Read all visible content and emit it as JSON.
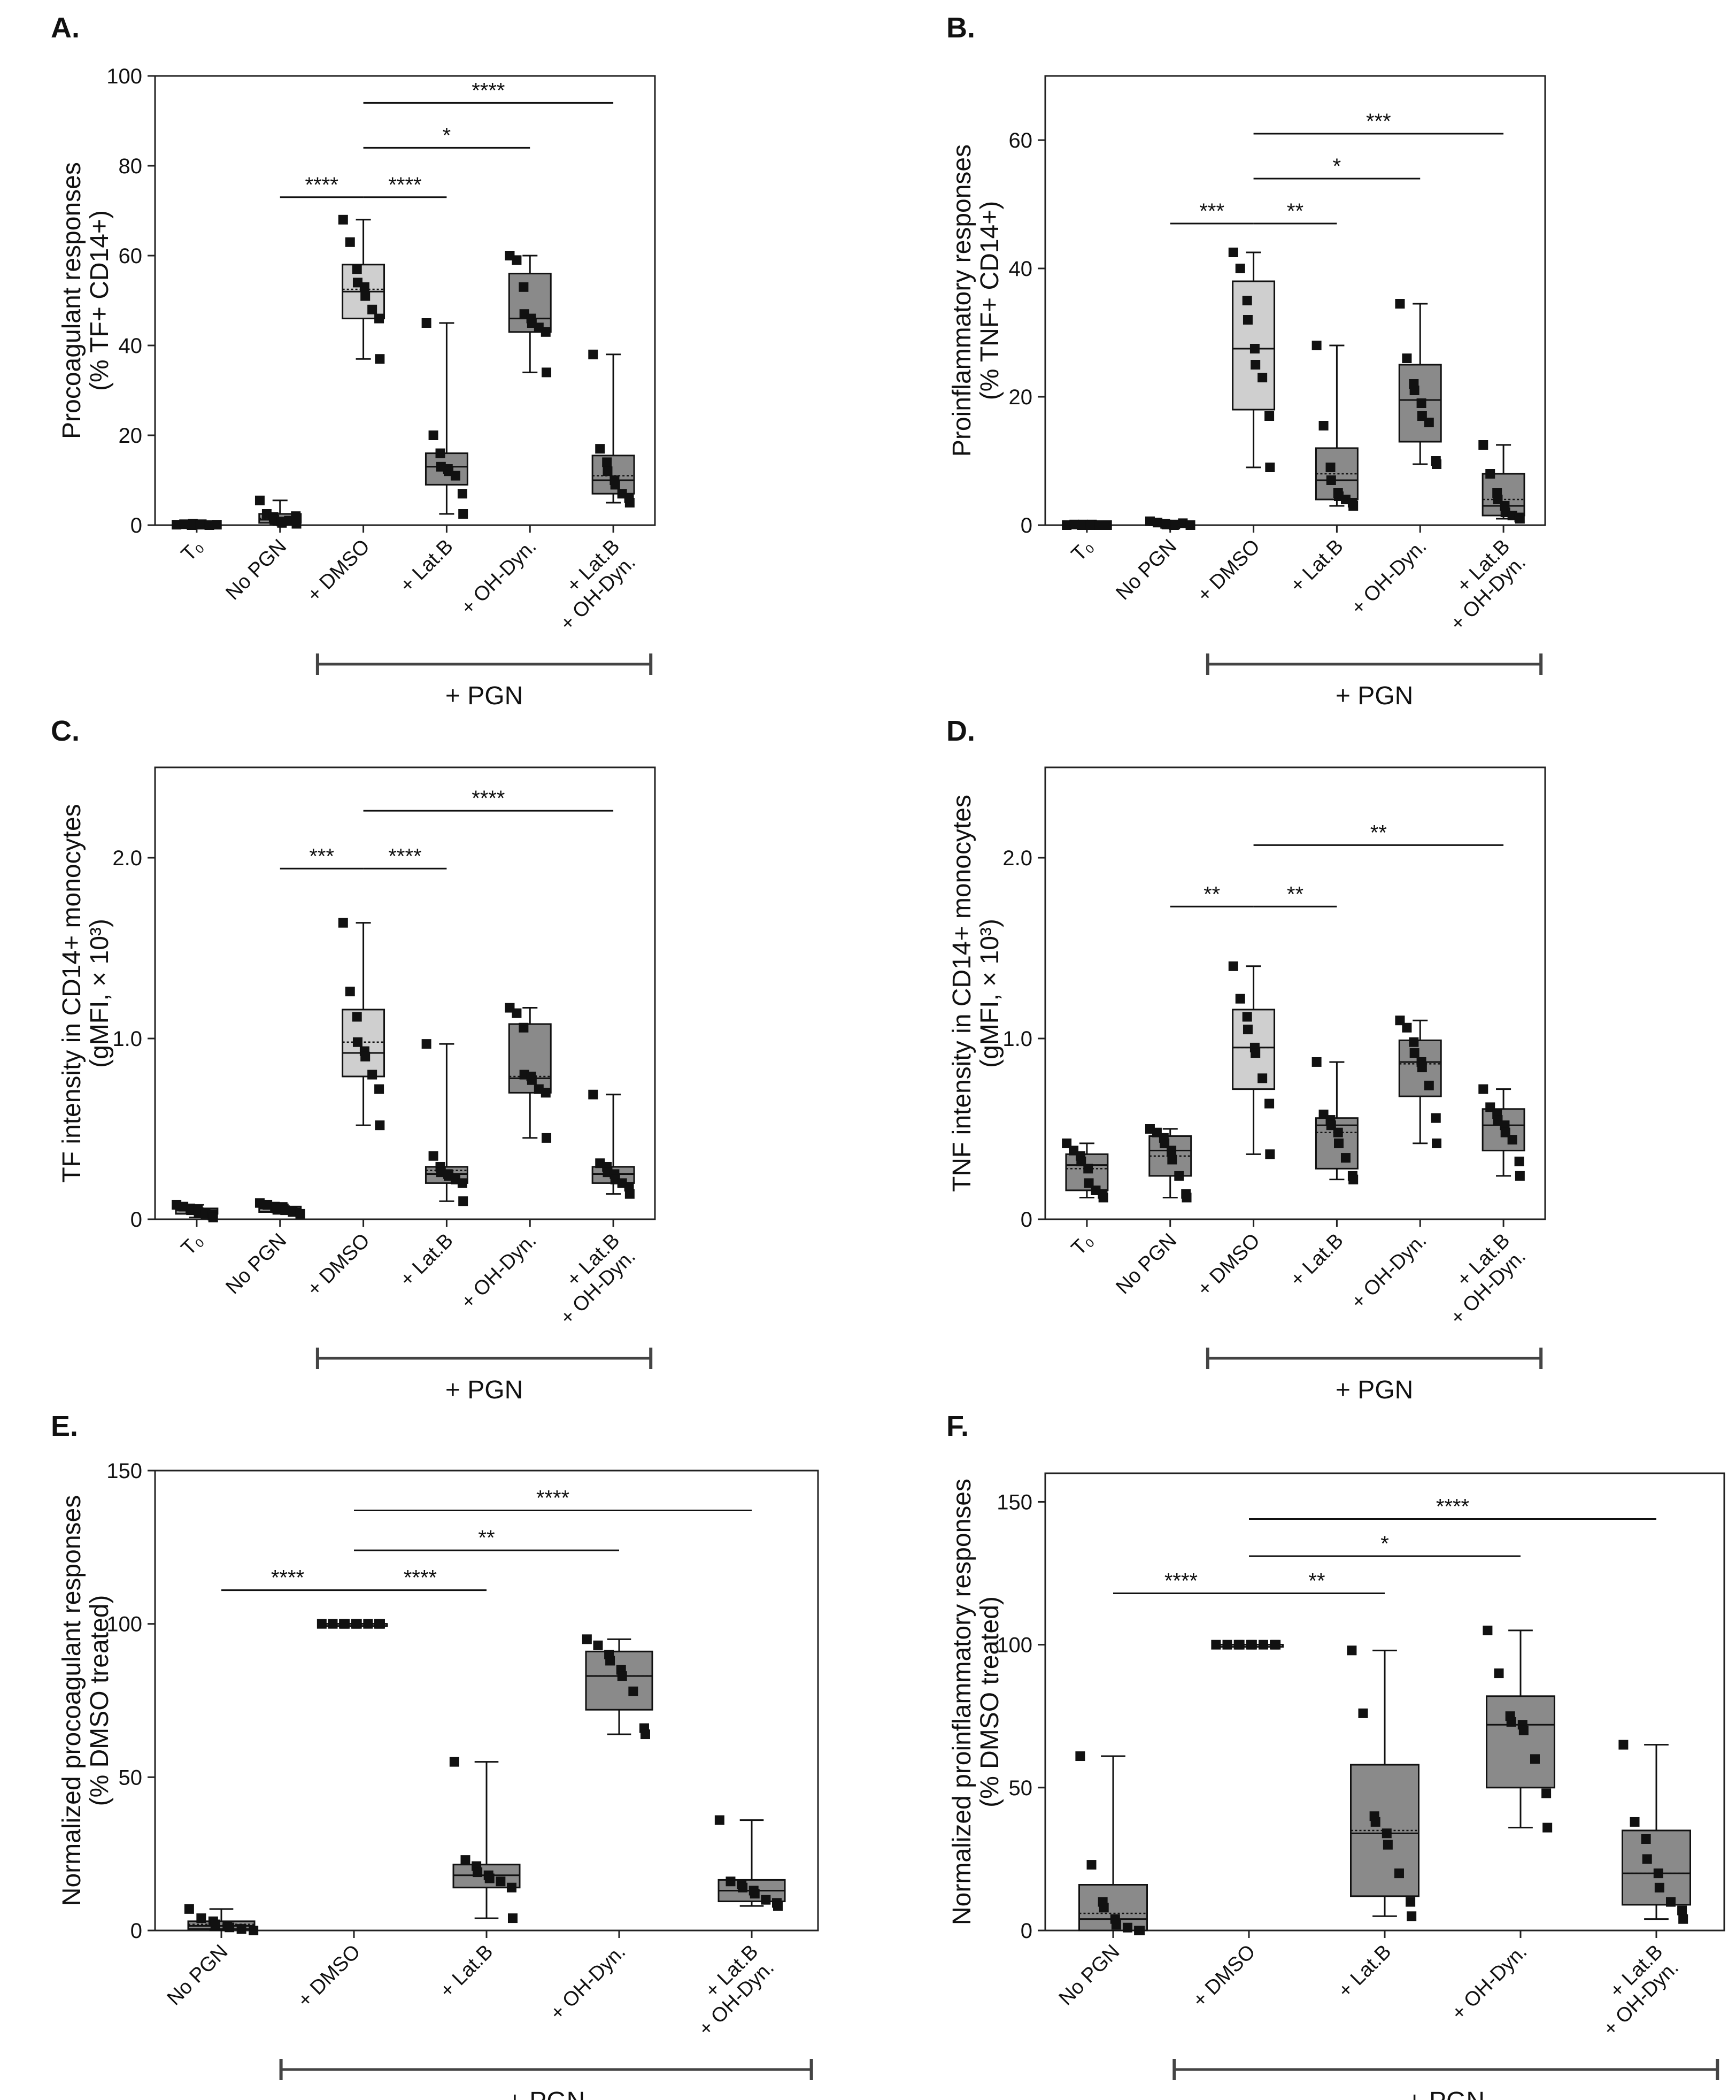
{
  "chart_data": [
    {
      "type": "box",
      "panel": "A.",
      "ylabel": [
        "Procoagulant responses",
        "(% TF+ CD14+)"
      ],
      "ylim": [
        0,
        100
      ],
      "yticks": [
        0,
        20,
        40,
        60,
        80,
        100
      ],
      "ytick_labels": [
        "0",
        "20",
        "40",
        "60",
        "80",
        "100"
      ],
      "categories": [
        [
          "T₀"
        ],
        [
          "No PGN"
        ],
        [
          "+ DMSO"
        ],
        [
          "+ Lat.B"
        ],
        [
          "+ OH-Dyn."
        ],
        [
          "+ Lat.B",
          "+ OH-Dyn."
        ]
      ],
      "group_label": "+ PGN",
      "group_span": [
        2,
        5
      ],
      "boxes": [
        {
          "min": 0,
          "q1": 0,
          "median": 0,
          "q3": 0.3,
          "max": 0.6,
          "mean": 0.1,
          "fill": "#8a8a8a",
          "points": [
            0.1,
            0.2,
            0.0,
            0.3,
            0.1,
            0.2,
            0.0,
            0.1
          ]
        },
        {
          "min": 0,
          "q1": 0.5,
          "median": 1.2,
          "q3": 2.5,
          "max": 5.5,
          "mean": 1.5,
          "fill": "#8a8a8a",
          "points": [
            5.5,
            2.5,
            1.8,
            1.2,
            0.8,
            0.5,
            1.0,
            2.0,
            0.3
          ]
        },
        {
          "min": 37,
          "q1": 46,
          "median": 52,
          "q3": 58,
          "max": 68,
          "mean": 52.5,
          "fill": "#cfcfcf",
          "points": [
            68,
            63,
            57,
            54,
            53,
            51,
            48,
            46,
            37
          ]
        },
        {
          "min": 2.5,
          "q1": 9,
          "median": 13,
          "q3": 16,
          "max": 45,
          "mean": 13,
          "fill": "#8a8a8a",
          "points": [
            45,
            20,
            16,
            13,
            12.5,
            12,
            11,
            7,
            2.5
          ]
        },
        {
          "min": 34,
          "q1": 43,
          "median": 46,
          "q3": 56,
          "max": 60,
          "mean": 46,
          "fill": "#8a8a8a",
          "points": [
            60,
            59,
            53,
            47,
            46,
            45,
            44,
            43,
            34
          ]
        },
        {
          "min": 5,
          "q1": 7,
          "median": 10,
          "q3": 15.5,
          "max": 38,
          "mean": 11,
          "fill": "#8a8a8a",
          "points": [
            38,
            17,
            14,
            12,
            10,
            9,
            7,
            6,
            5
          ]
        }
      ],
      "significance": [
        {
          "from": 1,
          "to": 2,
          "y": 73,
          "label": "****"
        },
        {
          "from": 2,
          "to": 3,
          "y": 73,
          "label": "****"
        },
        {
          "from": 2,
          "to": 4,
          "y": 84,
          "label": "*"
        },
        {
          "from": 2,
          "to": 5,
          "y": 94,
          "label": "****"
        }
      ]
    },
    {
      "type": "box",
      "panel": "B.",
      "ylabel": [
        "Proinflammatory responses",
        "(% TNF+ CD14+)"
      ],
      "ylim": [
        0,
        70
      ],
      "yticks": [
        0,
        20,
        40,
        60
      ],
      "ytick_labels": [
        "0",
        "20",
        "40",
        "60"
      ],
      "categories": [
        [
          "T₀"
        ],
        [
          "No PGN"
        ],
        [
          "+ DMSO"
        ],
        [
          "+ Lat.B"
        ],
        [
          "+ OH-Dyn."
        ],
        [
          "+ Lat.B",
          "+ OH-Dyn."
        ]
      ],
      "group_label": "+ PGN",
      "group_span": [
        2,
        5
      ],
      "boxes": [
        {
          "min": 0,
          "q1": 0,
          "median": 0,
          "q3": 0.1,
          "max": 0.2,
          "mean": 0,
          "fill": "#8a8a8a",
          "points": [
            0,
            0.1,
            0,
            0.1,
            0,
            0.1,
            0,
            0
          ]
        },
        {
          "min": 0,
          "q1": 0,
          "median": 0.1,
          "q3": 0.3,
          "max": 0.6,
          "mean": 0.2,
          "fill": "#8a8a8a",
          "points": [
            0.6,
            0.4,
            0.2,
            0.1,
            0,
            0.1,
            0.3,
            0
          ]
        },
        {
          "min": 9,
          "q1": 18,
          "median": 27.5,
          "q3": 38,
          "max": 42.5,
          "mean": 27.5,
          "fill": "#cfcfcf",
          "points": [
            42.5,
            40,
            35,
            32,
            27.5,
            25,
            23,
            17,
            9
          ]
        },
        {
          "min": 3,
          "q1": 4,
          "median": 7,
          "q3": 12,
          "max": 28,
          "mean": 8,
          "fill": "#8a8a8a",
          "points": [
            28,
            15.5,
            9,
            7,
            5,
            4.5,
            4,
            3.5,
            3
          ]
        },
        {
          "min": 9.5,
          "q1": 13,
          "median": 19.5,
          "q3": 25,
          "max": 34.5,
          "mean": 19.5,
          "fill": "#8a8a8a",
          "points": [
            34.5,
            26,
            22,
            21,
            19,
            17,
            16,
            10,
            9.5
          ]
        },
        {
          "min": 1,
          "q1": 1.5,
          "median": 3,
          "q3": 8,
          "max": 12.5,
          "mean": 4,
          "fill": "#8a8a8a",
          "points": [
            12.5,
            8,
            5,
            4,
            3,
            2,
            1.5,
            1.2,
            1
          ]
        }
      ],
      "significance": [
        {
          "from": 1,
          "to": 2,
          "y": 47,
          "label": "***"
        },
        {
          "from": 2,
          "to": 3,
          "y": 47,
          "label": "**"
        },
        {
          "from": 2,
          "to": 4,
          "y": 54,
          "label": "*"
        },
        {
          "from": 2,
          "to": 5,
          "y": 61,
          "label": "***"
        }
      ]
    },
    {
      "type": "box",
      "panel": "C.",
      "ylabel": [
        "TF intensity in CD14+ monocytes",
        "(gMFI, × 10³)"
      ],
      "ylim": [
        0,
        2.5
      ],
      "yticks": [
        0,
        1.0,
        2.0
      ],
      "ytick_labels": [
        "0",
        "1.0",
        "2.0"
      ],
      "categories": [
        [
          "T₀"
        ],
        [
          "No PGN"
        ],
        [
          "+ DMSO"
        ],
        [
          "+ Lat.B"
        ],
        [
          "+ OH-Dyn."
        ],
        [
          "+ Lat.B",
          "+ OH-Dyn."
        ]
      ],
      "group_label": "+ PGN",
      "group_span": [
        2,
        5
      ],
      "boxes": [
        {
          "min": 0.01,
          "q1": 0.03,
          "median": 0.05,
          "q3": 0.06,
          "max": 0.08,
          "mean": 0.05,
          "fill": "#8a8a8a",
          "points": [
            0.08,
            0.07,
            0.06,
            0.05,
            0.05,
            0.04,
            0.03,
            0.02,
            0.01
          ]
        },
        {
          "min": 0.03,
          "q1": 0.04,
          "median": 0.06,
          "q3": 0.07,
          "max": 0.09,
          "mean": 0.06,
          "fill": "#8a8a8a",
          "points": [
            0.09,
            0.08,
            0.07,
            0.06,
            0.06,
            0.05,
            0.04,
            0.03
          ]
        },
        {
          "min": 0.52,
          "q1": 0.79,
          "median": 0.92,
          "q3": 1.16,
          "max": 1.64,
          "mean": 0.98,
          "fill": "#cfcfcf",
          "points": [
            1.64,
            1.26,
            1.12,
            0.98,
            0.93,
            0.9,
            0.8,
            0.72,
            0.52
          ]
        },
        {
          "min": 0.1,
          "q1": 0.2,
          "median": 0.25,
          "q3": 0.29,
          "max": 0.97,
          "mean": 0.27,
          "fill": "#8a8a8a",
          "points": [
            0.97,
            0.35,
            0.29,
            0.26,
            0.25,
            0.24,
            0.22,
            0.2,
            0.1
          ]
        },
        {
          "min": 0.45,
          "q1": 0.7,
          "median": 0.78,
          "q3": 1.08,
          "max": 1.17,
          "mean": 0.79,
          "fill": "#8a8a8a",
          "points": [
            1.17,
            1.14,
            1.06,
            0.8,
            0.79,
            0.77,
            0.72,
            0.7,
            0.45
          ]
        },
        {
          "min": 0.14,
          "q1": 0.2,
          "median": 0.25,
          "q3": 0.29,
          "max": 0.69,
          "mean": 0.25,
          "fill": "#8a8a8a",
          "points": [
            0.69,
            0.31,
            0.29,
            0.26,
            0.25,
            0.22,
            0.2,
            0.18,
            0.14
          ]
        }
      ],
      "significance": [
        {
          "from": 1,
          "to": 2,
          "y": 1.94,
          "label": "***"
        },
        {
          "from": 2,
          "to": 3,
          "y": 1.94,
          "label": "****"
        },
        {
          "from": 2,
          "to": 5,
          "y": 2.26,
          "label": "****"
        }
      ]
    },
    {
      "type": "box",
      "panel": "D.",
      "ylabel": [
        "TNF intensity in CD14+ monocytes",
        "(gMFI, × 10³)"
      ],
      "ylim": [
        0,
        2.5
      ],
      "yticks": [
        0,
        1.0,
        2.0
      ],
      "ytick_labels": [
        "0",
        "1.0",
        "2.0"
      ],
      "categories": [
        [
          "T₀"
        ],
        [
          "No PGN"
        ],
        [
          "+ DMSO"
        ],
        [
          "+ Lat.B"
        ],
        [
          "+ OH-Dyn."
        ],
        [
          "+ Lat.B",
          "+ OH-Dyn."
        ]
      ],
      "group_label": "+ PGN",
      "group_span": [
        2,
        5
      ],
      "boxes": [
        {
          "min": 0.12,
          "q1": 0.16,
          "median": 0.3,
          "q3": 0.36,
          "max": 0.42,
          "mean": 0.28,
          "fill": "#8a8a8a",
          "points": [
            0.42,
            0.38,
            0.35,
            0.32,
            0.28,
            0.2,
            0.16,
            0.14,
            0.12
          ]
        },
        {
          "min": 0.12,
          "q1": 0.24,
          "median": 0.38,
          "q3": 0.46,
          "max": 0.5,
          "mean": 0.35,
          "fill": "#8a8a8a",
          "points": [
            0.5,
            0.48,
            0.45,
            0.42,
            0.38,
            0.33,
            0.24,
            0.14,
            0.12
          ]
        },
        {
          "min": 0.36,
          "q1": 0.72,
          "median": 0.95,
          "q3": 1.16,
          "max": 1.4,
          "mean": 0.95,
          "fill": "#cfcfcf",
          "points": [
            1.4,
            1.22,
            1.12,
            1.05,
            0.95,
            0.92,
            0.78,
            0.64,
            0.36
          ]
        },
        {
          "min": 0.22,
          "q1": 0.28,
          "median": 0.52,
          "q3": 0.56,
          "max": 0.87,
          "mean": 0.48,
          "fill": "#8a8a8a",
          "points": [
            0.87,
            0.58,
            0.55,
            0.52,
            0.48,
            0.42,
            0.34,
            0.24,
            0.22
          ]
        },
        {
          "min": 0.42,
          "q1": 0.68,
          "median": 0.87,
          "q3": 0.99,
          "max": 1.1,
          "mean": 0.86,
          "fill": "#8a8a8a",
          "points": [
            1.1,
            1.06,
            0.98,
            0.92,
            0.87,
            0.84,
            0.74,
            0.56,
            0.42
          ]
        },
        {
          "min": 0.24,
          "q1": 0.38,
          "median": 0.52,
          "q3": 0.61,
          "max": 0.72,
          "mean": 0.52,
          "fill": "#8a8a8a",
          "points": [
            0.72,
            0.62,
            0.58,
            0.55,
            0.52,
            0.48,
            0.44,
            0.32,
            0.24
          ]
        }
      ],
      "significance": [
        {
          "from": 1,
          "to": 2,
          "y": 1.73,
          "label": "**"
        },
        {
          "from": 2,
          "to": 3,
          "y": 1.73,
          "label": "**"
        },
        {
          "from": 2,
          "to": 5,
          "y": 2.07,
          "label": "**"
        }
      ]
    },
    {
      "type": "box",
      "panel": "E.",
      "ylabel": [
        "Normalized procoagulant responses",
        "(% DMSO treated)"
      ],
      "ylim": [
        0,
        150
      ],
      "yticks": [
        0,
        50,
        100,
        150
      ],
      "ytick_labels": [
        "0",
        "50",
        "100",
        "150"
      ],
      "categories": [
        [
          "No PGN"
        ],
        [
          "+ DMSO"
        ],
        [
          "+ Lat.B"
        ],
        [
          "+ OH-Dyn."
        ],
        [
          "+ Lat.B",
          "+ OH-Dyn."
        ]
      ],
      "group_label": "+ PGN",
      "group_span": [
        1,
        4
      ],
      "boxes": [
        {
          "min": 0,
          "q1": 0.5,
          "median": 1.5,
          "q3": 3,
          "max": 7,
          "mean": 2,
          "fill": "#8a8a8a",
          "points": [
            7,
            4,
            3,
            2,
            1.5,
            1,
            0.5,
            0
          ]
        },
        {
          "min": 100,
          "q1": 100,
          "median": 100,
          "q3": 100,
          "max": 100,
          "mean": 100,
          "fill": "#cfcfcf",
          "points": [
            100,
            100,
            100,
            100,
            100,
            100,
            100,
            100,
            100
          ]
        },
        {
          "min": 4,
          "q1": 14,
          "median": 18,
          "q3": 21.5,
          "max": 55,
          "mean": 18,
          "fill": "#8a8a8a",
          "points": [
            55,
            23,
            21,
            19,
            18,
            17,
            16,
            14,
            4
          ]
        },
        {
          "min": 64,
          "q1": 72,
          "median": 83,
          "q3": 91,
          "max": 95,
          "mean": 83,
          "fill": "#8a8a8a",
          "points": [
            95,
            93,
            90,
            88,
            85,
            83,
            78,
            66,
            64
          ]
        },
        {
          "min": 8,
          "q1": 9.5,
          "median": 13,
          "q3": 16.5,
          "max": 36,
          "mean": 13,
          "fill": "#8a8a8a",
          "points": [
            36,
            16,
            15,
            14,
            13,
            12,
            10,
            9,
            8
          ]
        }
      ],
      "significance": [
        {
          "from": 0,
          "to": 1,
          "y": 111,
          "label": "****"
        },
        {
          "from": 1,
          "to": 2,
          "y": 111,
          "label": "****"
        },
        {
          "from": 1,
          "to": 3,
          "y": 124,
          "label": "**"
        },
        {
          "from": 1,
          "to": 4,
          "y": 137,
          "label": "****"
        }
      ]
    },
    {
      "type": "box",
      "panel": "F.",
      "ylabel": [
        "Normalized proinflammatory responses",
        "(% DMSO treated)"
      ],
      "ylim": [
        0,
        160
      ],
      "yticks": [
        0,
        50,
        100,
        150
      ],
      "ytick_labels": [
        "0",
        "50",
        "100",
        "150"
      ],
      "categories": [
        [
          "No PGN"
        ],
        [
          "+ DMSO"
        ],
        [
          "+ Lat.B"
        ],
        [
          "+ OH-Dyn."
        ],
        [
          "+ Lat.B",
          "+ OH-Dyn."
        ]
      ],
      "group_label": "+ PGN",
      "group_span": [
        1,
        4
      ],
      "boxes": [
        {
          "min": 0,
          "q1": 0,
          "median": 4,
          "q3": 16,
          "max": 61,
          "mean": 6,
          "fill": "#8a8a8a",
          "points": [
            61,
            23,
            10,
            8,
            4,
            2,
            1,
            0,
            0
          ]
        },
        {
          "min": 100,
          "q1": 100,
          "median": 100,
          "q3": 100,
          "max": 100,
          "mean": 100,
          "fill": "#cfcfcf",
          "points": [
            100,
            100,
            100,
            100,
            100,
            100,
            100,
            100,
            100
          ]
        },
        {
          "min": 5,
          "q1": 12,
          "median": 34,
          "q3": 58,
          "max": 98,
          "mean": 35,
          "fill": "#8a8a8a",
          "points": [
            98,
            76,
            40,
            38,
            34,
            30,
            20,
            10,
            5
          ]
        },
        {
          "min": 36,
          "q1": 50,
          "median": 72,
          "q3": 82,
          "max": 105,
          "mean": 72,
          "fill": "#8a8a8a",
          "points": [
            105,
            90,
            75,
            73,
            72,
            70,
            60,
            48,
            36
          ]
        },
        {
          "min": 4,
          "q1": 9,
          "median": 20,
          "q3": 35,
          "max": 65,
          "mean": 20,
          "fill": "#8a8a8a",
          "points": [
            65,
            38,
            32,
            25,
            20,
            15,
            10,
            7,
            4
          ]
        }
      ],
      "significance": [
        {
          "from": 0,
          "to": 1,
          "y": 118,
          "label": "****"
        },
        {
          "from": 1,
          "to": 2,
          "y": 118,
          "label": "**"
        },
        {
          "from": 1,
          "to": 3,
          "y": 131,
          "label": "*"
        },
        {
          "from": 1,
          "to": 4,
          "y": 144,
          "label": "****"
        }
      ]
    }
  ]
}
